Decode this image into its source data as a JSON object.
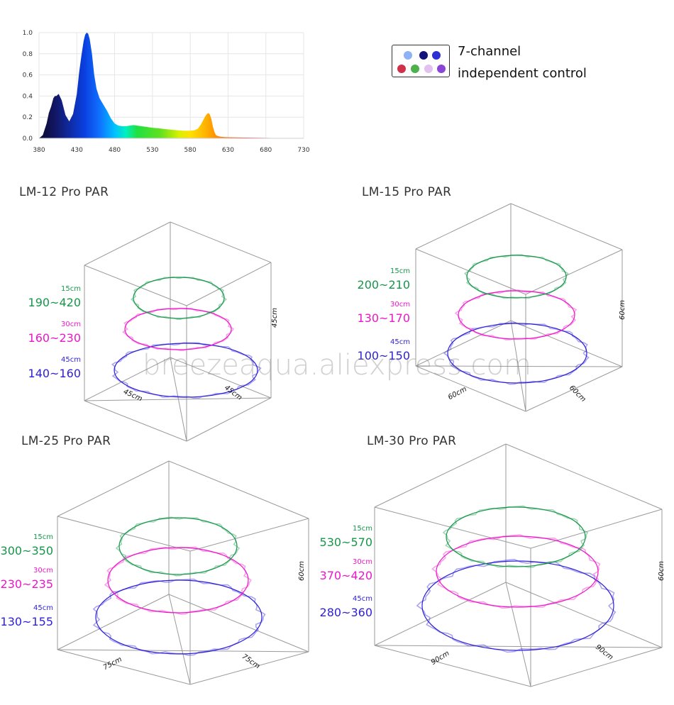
{
  "spectrum": {
    "chart_data": {
      "type": "area",
      "x": [
        380,
        385,
        390,
        393,
        396,
        399,
        401,
        403,
        406,
        410,
        415,
        420,
        425,
        430,
        433,
        436,
        439,
        441,
        443,
        445,
        447,
        450,
        453,
        456,
        460,
        465,
        470,
        475,
        480,
        485,
        490,
        495,
        500,
        505,
        510,
        520,
        530,
        540,
        550,
        560,
        570,
        575,
        580,
        585,
        590,
        594,
        597,
        600,
        602,
        604,
        606,
        608,
        610,
        612,
        614,
        617,
        620,
        625,
        630,
        640,
        660,
        680,
        700,
        720,
        730
      ],
      "y": [
        0.0,
        0.03,
        0.14,
        0.24,
        0.3,
        0.38,
        0.4,
        0.4,
        0.42,
        0.36,
        0.22,
        0.16,
        0.23,
        0.42,
        0.62,
        0.78,
        0.92,
        0.98,
        1.0,
        0.99,
        0.94,
        0.8,
        0.6,
        0.47,
        0.38,
        0.32,
        0.26,
        0.19,
        0.14,
        0.12,
        0.115,
        0.115,
        0.12,
        0.125,
        0.12,
        0.11,
        0.1,
        0.093,
        0.085,
        0.078,
        0.072,
        0.071,
        0.072,
        0.075,
        0.09,
        0.13,
        0.17,
        0.21,
        0.23,
        0.24,
        0.225,
        0.18,
        0.11,
        0.06,
        0.03,
        0.02,
        0.015,
        0.012,
        0.01,
        0.008,
        0.006,
        0.004,
        0.003,
        0.002,
        0.001
      ],
      "xticks": [
        "380",
        "430",
        "480",
        "530",
        "580",
        "630",
        "680",
        "730"
      ],
      "yticks": [
        "0.0",
        "0.2",
        "0.4",
        "0.6",
        "0.8",
        "1.0"
      ],
      "xlim": [
        380,
        730
      ],
      "ylim": [
        0,
        1.0
      ],
      "grid": true
    }
  },
  "legend": {
    "line1": "7-channel",
    "line2": "independent control",
    "dot_colors": [
      "#8db2f5",
      "#12127c",
      "#2f2fd6",
      "#d0304a",
      "#4db04a",
      "#e2c0ef",
      "#8a45d6"
    ]
  },
  "watermark": "breezeaqua.aliexpress.com",
  "colors": {
    "c15": "#16964a",
    "c30": "#ec17c8",
    "c45": "#2c1fd6"
  },
  "panels": [
    {
      "title": "LM-12 Pro PAR",
      "dim_w": "45cm",
      "dim_d": "45cm",
      "dim_h": "45cm",
      "rings": [
        {
          "depth": "15cm",
          "value": "190~420"
        },
        {
          "depth": "30cm",
          "value": "160~230"
        },
        {
          "depth": "45cm",
          "value": "140~160"
        }
      ]
    },
    {
      "title": "LM-15 Pro PAR",
      "dim_w": "60cm",
      "dim_d": "60cm",
      "dim_h": "60cm",
      "rings": [
        {
          "depth": "15cm",
          "value": "200~210"
        },
        {
          "depth": "30cm",
          "value": "130~170"
        },
        {
          "depth": "45cm",
          "value": "100~150"
        }
      ]
    },
    {
      "title": "LM-25 Pro PAR",
      "dim_w": "75cm",
      "dim_d": "75cm",
      "dim_h": "60cm",
      "rings": [
        {
          "depth": "15cm",
          "value": "300~350"
        },
        {
          "depth": "30cm",
          "value": "230~235"
        },
        {
          "depth": "45cm",
          "value": "130~155"
        }
      ]
    },
    {
      "title": "LM-30 Pro PAR",
      "dim_w": "90cm",
      "dim_d": "90cm",
      "dim_h": "60cm",
      "rings": [
        {
          "depth": "15cm",
          "value": "530~570"
        },
        {
          "depth": "30cm",
          "value": "370~420"
        },
        {
          "depth": "45cm",
          "value": "280~360"
        }
      ]
    }
  ]
}
